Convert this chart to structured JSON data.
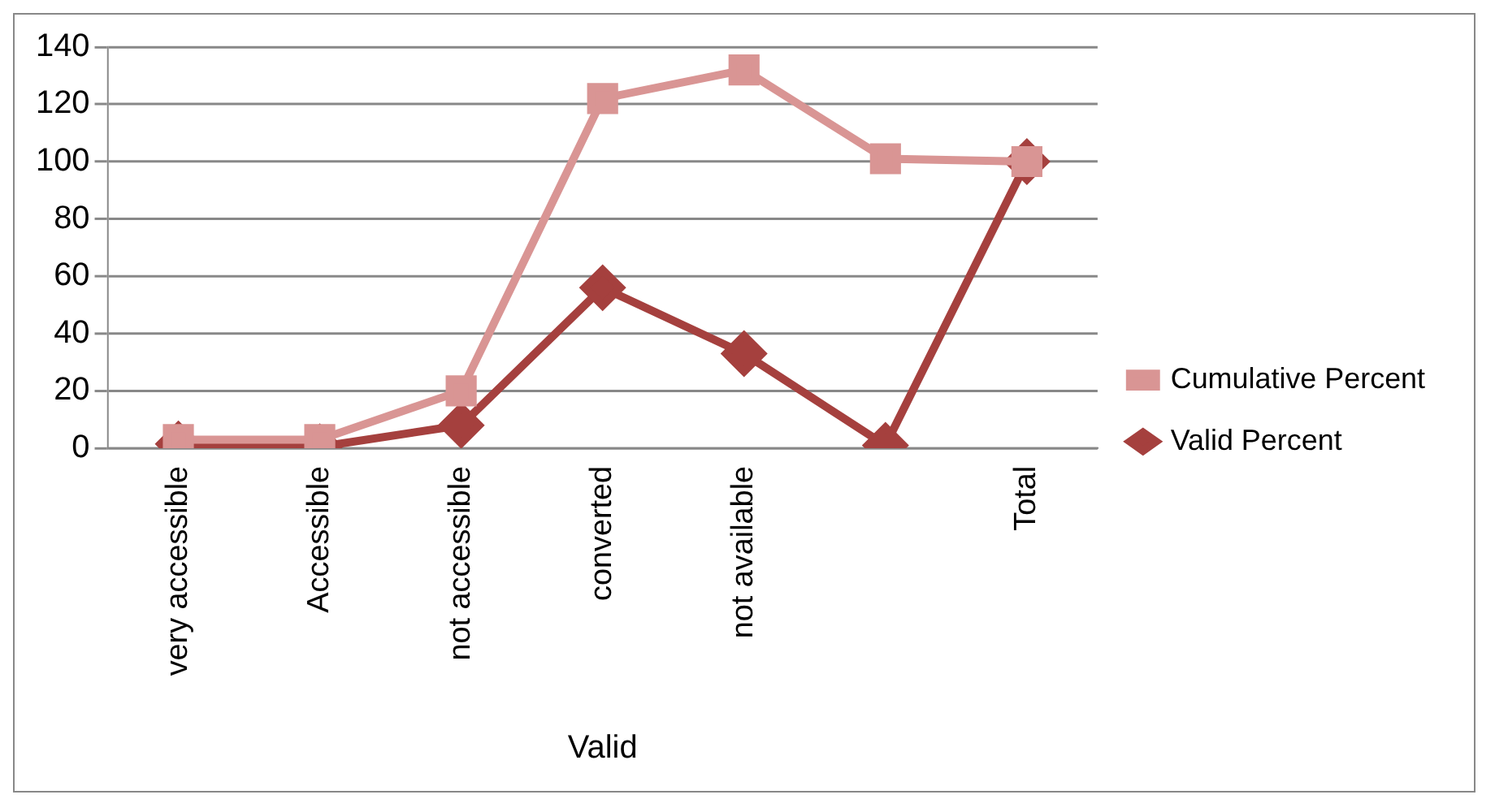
{
  "chart_data": {
    "type": "line",
    "categories": [
      "very accessible",
      "Accessible",
      "not accessible",
      "converted",
      "not available",
      null,
      "Total"
    ],
    "xlabel": "Valid",
    "ylim": [
      0,
      140
    ],
    "yticks": [
      0,
      20,
      40,
      60,
      80,
      100,
      120,
      140
    ],
    "grid": "y",
    "legend": "right",
    "series": [
      {
        "name": "Cumulative Percent",
        "color": "#d99594",
        "marker": "square",
        "values": [
          3,
          3,
          20,
          122,
          132,
          101,
          100
        ]
      },
      {
        "name": "Valid Percent",
        "color": "#a5403e",
        "marker": "diamond",
        "values": [
          1.5,
          0.5,
          8,
          56,
          33,
          1,
          100
        ]
      }
    ]
  }
}
